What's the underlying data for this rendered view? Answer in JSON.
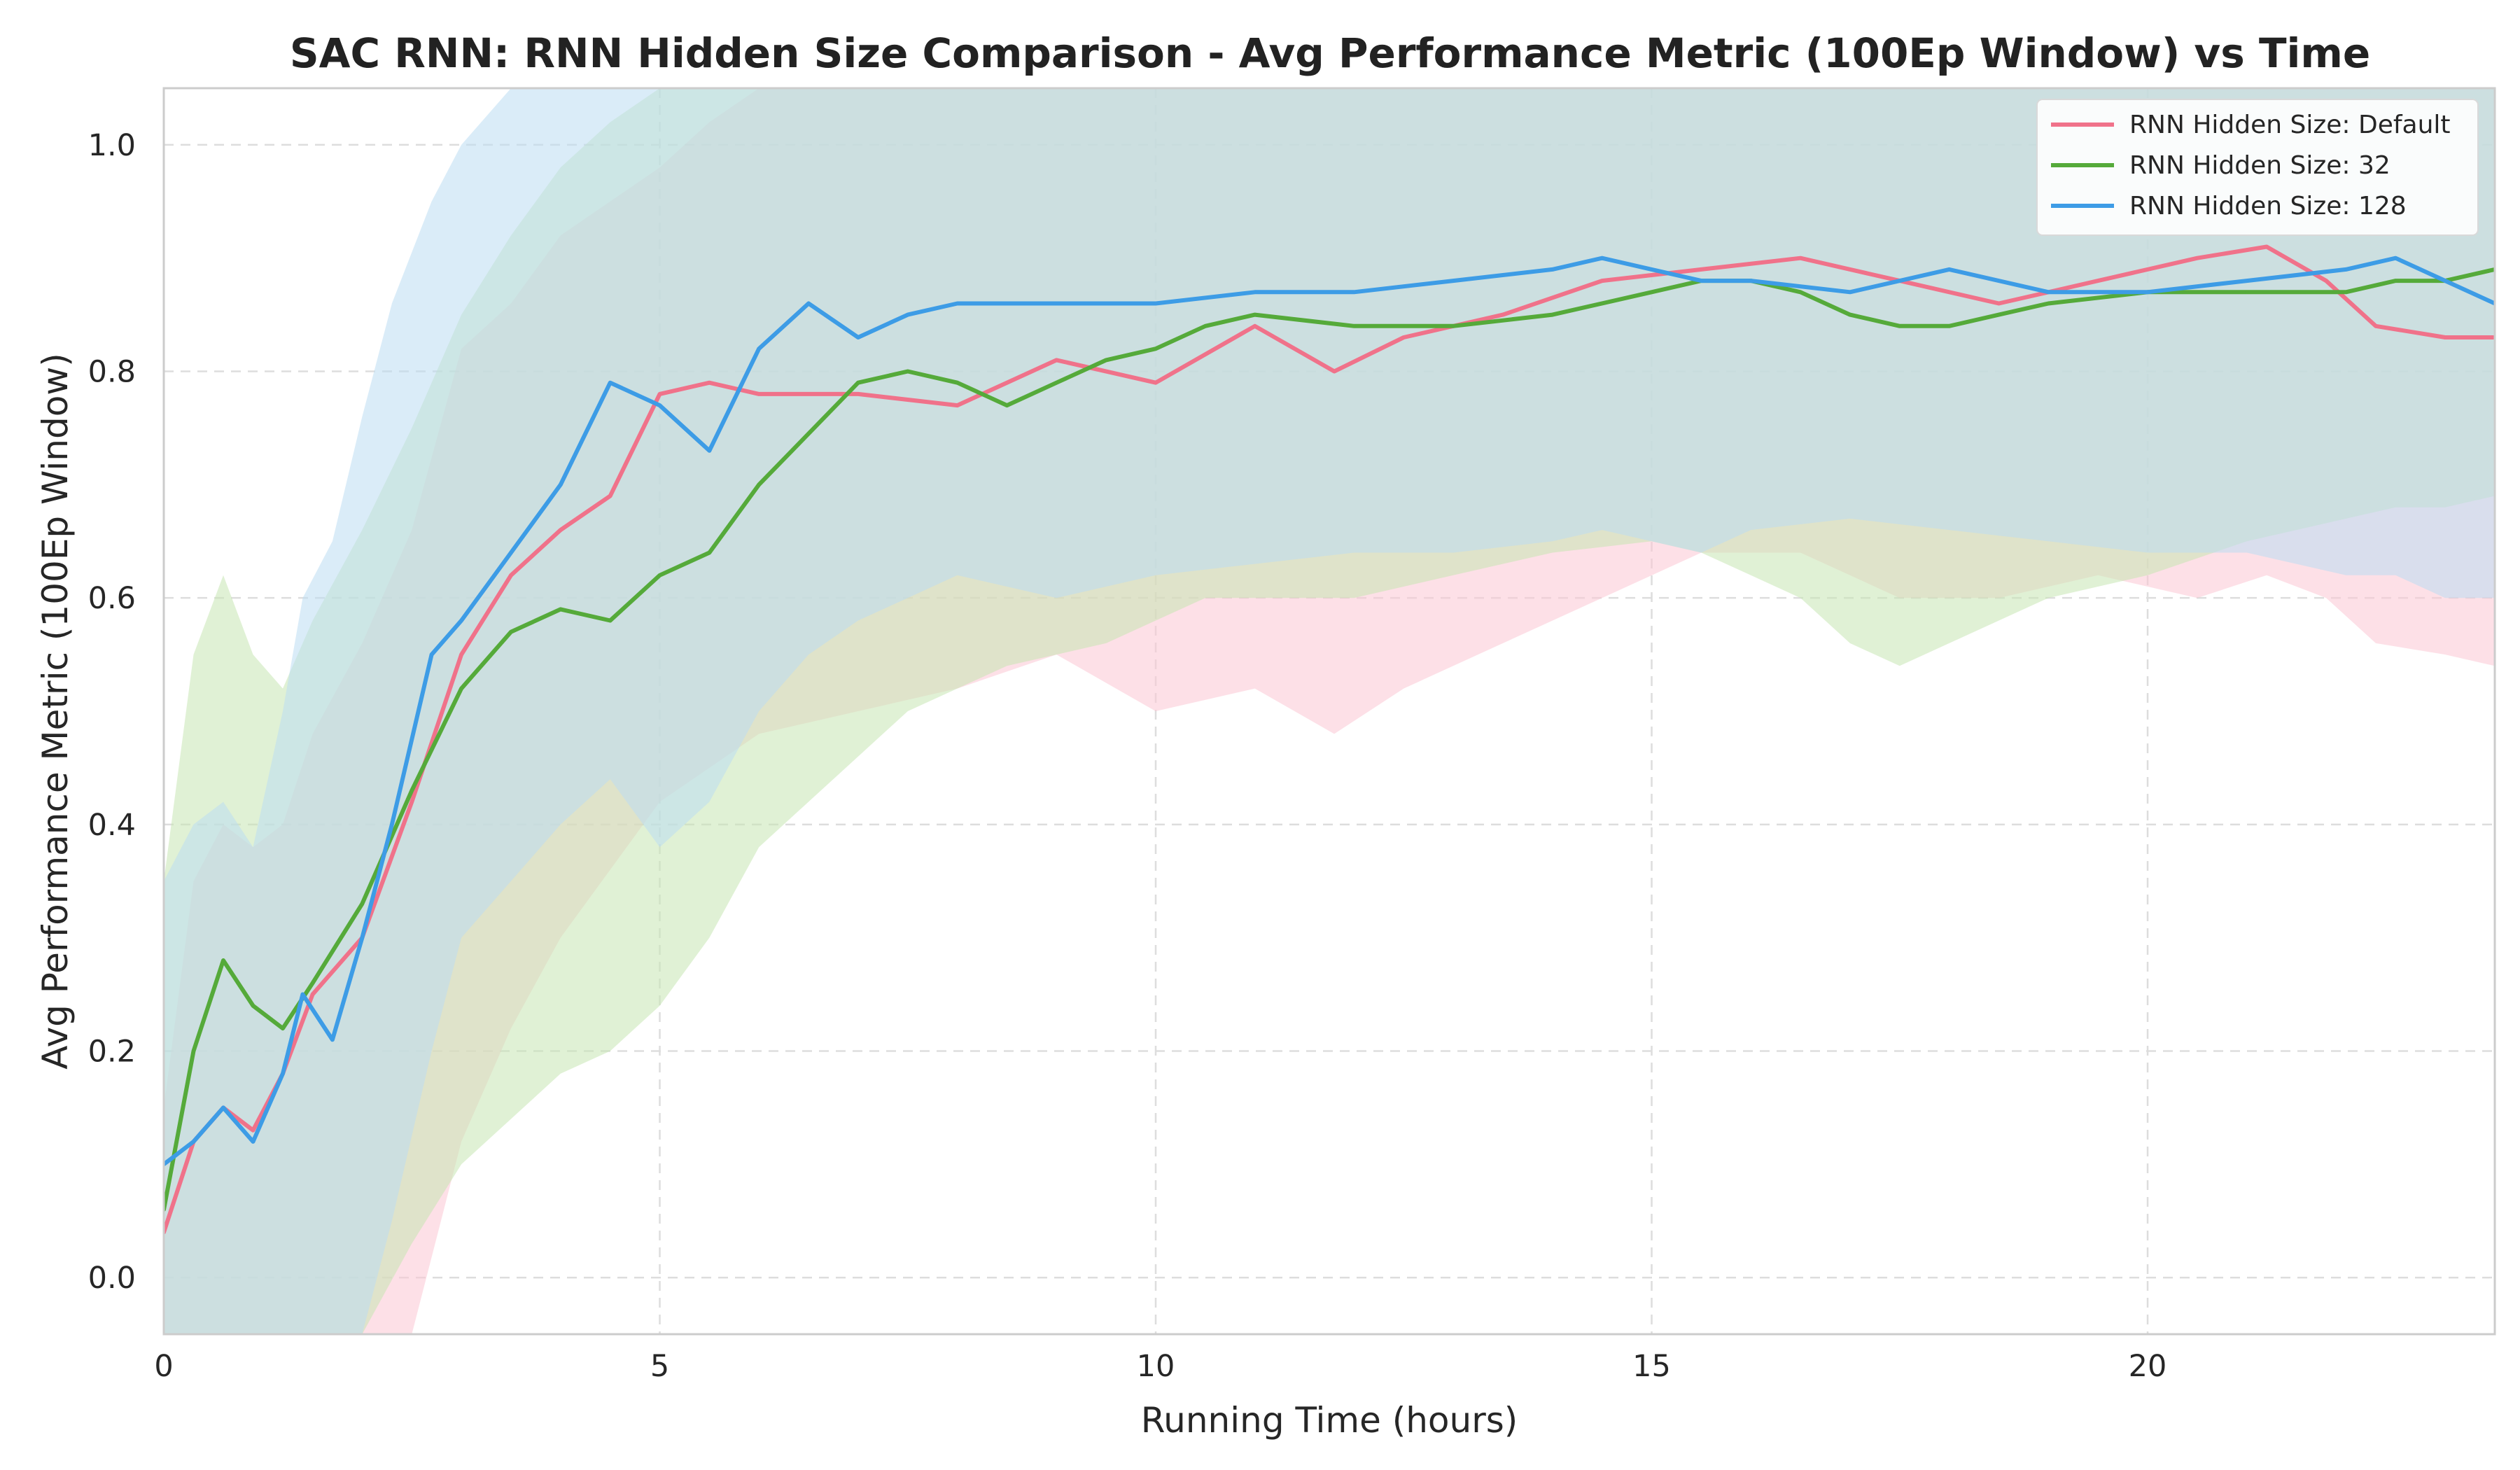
{
  "chart_data": {
    "type": "line",
    "title": "SAC RNN: RNN Hidden Size Comparison - Avg Performance Metric (100Ep Window) vs Time",
    "xlabel": "Running Time (hours)",
    "ylabel": "Avg Performance Metric (100Ep Window)",
    "xlim": [
      0,
      23.5
    ],
    "ylim": [
      -0.05,
      1.05
    ],
    "xticks": [
      0,
      5,
      10,
      15,
      20
    ],
    "yticks": [
      0.0,
      0.2,
      0.4,
      0.6,
      0.8,
      1.0
    ],
    "grid": true,
    "legend_position": "top-right",
    "series": [
      {
        "name": "RNN Hidden Size: Default",
        "color": "#f0728a",
        "band_color": "#fbc7d3",
        "x": [
          0,
          0.3,
          0.6,
          0.9,
          1.2,
          1.5,
          2.0,
          2.5,
          3.0,
          3.5,
          4.0,
          4.5,
          5.0,
          5.5,
          6.0,
          7.0,
          8.0,
          9.0,
          10.0,
          11.0,
          11.8,
          12.5,
          13.5,
          14.5,
          15.5,
          16.5,
          17.5,
          18.5,
          19.5,
          20.5,
          21.2,
          21.8,
          22.3,
          23.0,
          23.5
        ],
        "values": [
          0.04,
          0.12,
          0.15,
          0.13,
          0.18,
          0.25,
          0.3,
          0.42,
          0.55,
          0.62,
          0.66,
          0.69,
          0.78,
          0.79,
          0.78,
          0.78,
          0.77,
          0.81,
          0.79,
          0.84,
          0.8,
          0.83,
          0.85,
          0.88,
          0.89,
          0.9,
          0.88,
          0.86,
          0.88,
          0.9,
          0.91,
          0.88,
          0.84,
          0.83,
          0.83
        ],
        "lower": [
          -0.05,
          -0.05,
          -0.05,
          -0.05,
          -0.05,
          -0.05,
          -0.05,
          -0.05,
          0.12,
          0.22,
          0.3,
          0.36,
          0.42,
          0.45,
          0.48,
          0.5,
          0.52,
          0.55,
          0.5,
          0.52,
          0.48,
          0.52,
          0.56,
          0.6,
          0.64,
          0.64,
          0.6,
          0.6,
          0.62,
          0.6,
          0.62,
          0.6,
          0.56,
          0.55,
          0.54
        ],
        "upper": [
          0.15,
          0.35,
          0.4,
          0.38,
          0.4,
          0.48,
          0.56,
          0.66,
          0.82,
          0.86,
          0.92,
          0.95,
          0.98,
          1.02,
          1.05,
          1.05,
          1.05,
          1.05,
          1.05,
          1.05,
          1.05,
          1.05,
          1.05,
          1.05,
          1.05,
          1.05,
          1.05,
          1.05,
          1.05,
          1.05,
          1.05,
          1.05,
          1.05,
          1.05,
          1.05
        ]
      },
      {
        "name": "RNN Hidden Size: 32",
        "color": "#55aa3a",
        "band_color": "#c6e6b3",
        "x": [
          0,
          0.3,
          0.6,
          0.9,
          1.2,
          1.5,
          2.0,
          2.5,
          3.0,
          3.5,
          4.0,
          4.5,
          5.0,
          5.5,
          6.0,
          7.0,
          7.5,
          8.0,
          8.5,
          9.0,
          9.5,
          10.0,
          10.5,
          11.0,
          12.0,
          13.0,
          14.0,
          15.0,
          15.5,
          16.0,
          16.5,
          17.0,
          17.5,
          18.0,
          18.5,
          19.0,
          20.0,
          21.0,
          22.0,
          22.5,
          23.0,
          23.5
        ],
        "values": [
          0.06,
          0.2,
          0.28,
          0.24,
          0.22,
          0.26,
          0.33,
          0.43,
          0.52,
          0.57,
          0.59,
          0.58,
          0.62,
          0.64,
          0.7,
          0.79,
          0.8,
          0.79,
          0.77,
          0.79,
          0.81,
          0.82,
          0.84,
          0.85,
          0.84,
          0.84,
          0.85,
          0.87,
          0.88,
          0.88,
          0.87,
          0.85,
          0.84,
          0.84,
          0.85,
          0.86,
          0.87,
          0.87,
          0.87,
          0.88,
          0.88,
          0.89
        ],
        "lower": [
          -0.05,
          -0.05,
          -0.05,
          -0.05,
          -0.05,
          -0.05,
          -0.05,
          0.03,
          0.1,
          0.14,
          0.18,
          0.2,
          0.24,
          0.3,
          0.38,
          0.46,
          0.5,
          0.52,
          0.54,
          0.55,
          0.56,
          0.58,
          0.6,
          0.6,
          0.6,
          0.62,
          0.64,
          0.65,
          0.64,
          0.62,
          0.6,
          0.56,
          0.54,
          0.56,
          0.58,
          0.6,
          0.62,
          0.65,
          0.67,
          0.68,
          0.68,
          0.69
        ],
        "upper": [
          0.35,
          0.55,
          0.62,
          0.55,
          0.52,
          0.58,
          0.66,
          0.75,
          0.85,
          0.92,
          0.98,
          1.02,
          1.05,
          1.05,
          1.05,
          1.05,
          1.05,
          1.05,
          1.05,
          1.05,
          1.05,
          1.05,
          1.05,
          1.05,
          1.05,
          1.05,
          1.05,
          1.05,
          1.05,
          1.05,
          1.05,
          1.05,
          1.05,
          1.05,
          1.05,
          1.05,
          1.05,
          1.05,
          1.05,
          1.05,
          1.05,
          1.05
        ]
      },
      {
        "name": "RNN Hidden Size: 128",
        "color": "#3d9ce6",
        "band_color": "#bcdcf3",
        "x": [
          0,
          0.3,
          0.6,
          0.9,
          1.2,
          1.4,
          1.7,
          2.0,
          2.3,
          2.7,
          3.0,
          3.5,
          4.0,
          4.5,
          5.0,
          5.5,
          6.0,
          6.5,
          7.0,
          7.5,
          8.0,
          9.0,
          10.0,
          11.0,
          12.0,
          13.0,
          14.0,
          14.5,
          15.0,
          15.5,
          16.0,
          17.0,
          18.0,
          19.0,
          20.0,
          21.0,
          22.0,
          22.5,
          23.0,
          23.5
        ],
        "values": [
          0.1,
          0.12,
          0.15,
          0.12,
          0.18,
          0.25,
          0.21,
          0.3,
          0.4,
          0.55,
          0.58,
          0.64,
          0.7,
          0.79,
          0.77,
          0.73,
          0.82,
          0.86,
          0.83,
          0.85,
          0.86,
          0.86,
          0.86,
          0.87,
          0.87,
          0.88,
          0.89,
          0.9,
          0.89,
          0.88,
          0.88,
          0.87,
          0.89,
          0.87,
          0.87,
          0.88,
          0.89,
          0.9,
          0.88,
          0.86
        ],
        "lower": [
          -0.05,
          -0.05,
          -0.05,
          -0.05,
          -0.05,
          -0.05,
          -0.05,
          -0.05,
          0.05,
          0.2,
          0.3,
          0.35,
          0.4,
          0.44,
          0.38,
          0.42,
          0.5,
          0.55,
          0.58,
          0.6,
          0.62,
          0.6,
          0.62,
          0.63,
          0.64,
          0.64,
          0.65,
          0.66,
          0.65,
          0.64,
          0.66,
          0.67,
          0.66,
          0.65,
          0.64,
          0.64,
          0.62,
          0.62,
          0.6,
          0.6
        ],
        "upper": [
          0.35,
          0.4,
          0.42,
          0.38,
          0.5,
          0.6,
          0.65,
          0.76,
          0.86,
          0.95,
          1.0,
          1.05,
          1.05,
          1.05,
          1.05,
          1.05,
          1.05,
          1.05,
          1.05,
          1.05,
          1.05,
          1.05,
          1.05,
          1.05,
          1.05,
          1.05,
          1.05,
          1.05,
          1.05,
          1.05,
          1.05,
          1.05,
          1.05,
          1.05,
          1.05,
          1.05,
          1.05,
          1.05,
          1.05,
          1.05
        ]
      }
    ]
  }
}
